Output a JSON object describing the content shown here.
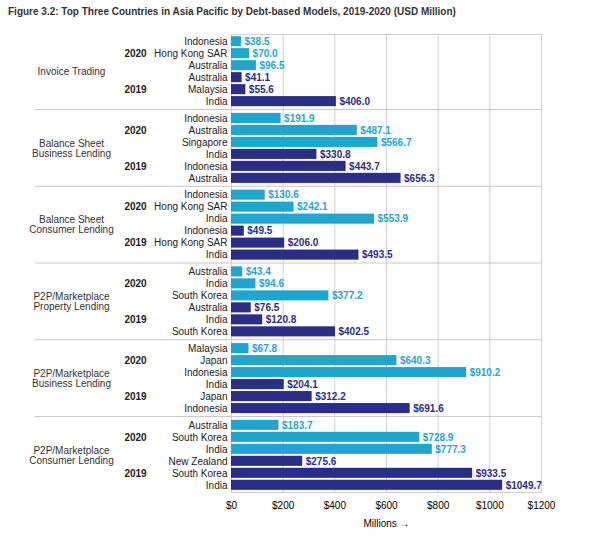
{
  "chart_data": {
    "type": "bar",
    "title": "Figure 3.2: Top Three Countries in Asia Pacific by Debt-based Models, 2019-2020 (USD Million)",
    "xlabel": "Millions",
    "orientation": "horizontal",
    "data_labels": true,
    "grid": true,
    "xlim": [
      0,
      1200
    ],
    "xticks": [
      {
        "value": 0,
        "label": "$0"
      },
      {
        "value": 200,
        "label": "$200"
      },
      {
        "value": 400,
        "label": "$400"
      },
      {
        "value": 600,
        "label": "$600"
      },
      {
        "value": 800,
        "label": "$800"
      },
      {
        "value": 1000,
        "label": "$1000"
      },
      {
        "value": 1200,
        "label": "$1200"
      }
    ],
    "panels": [
      {
        "label": "P2P/Marketplace Consumer Lending",
        "series": [
          {
            "name": "2019",
            "color": "#2b2e86",
            "categories": [
              "India",
              "South Korea",
              "New Zealand"
            ],
            "values": [
              1049.7,
              933.5,
              275.6
            ],
            "value_labels": [
              "$1049.7",
              "$933.5",
              "$275.6"
            ]
          },
          {
            "name": "2020",
            "color": "#1fa6cf",
            "categories": [
              "India",
              "South Korea",
              "Australia"
            ],
            "values": [
              777.3,
              728.9,
              183.7
            ],
            "value_labels": [
              "$777.3",
              "$728.9",
              "$183.7"
            ]
          }
        ]
      },
      {
        "label": "P2P/Marketplace Business Lending",
        "series": [
          {
            "name": "2019",
            "color": "#2b2e86",
            "categories": [
              "Indonesia",
              "Japan",
              "India"
            ],
            "values": [
              691.6,
              312.2,
              204.1
            ],
            "value_labels": [
              "$691.6",
              "$312.2",
              "$204.1"
            ]
          },
          {
            "name": "2020",
            "color": "#1fa6cf",
            "categories": [
              "Indonesia",
              "Japan",
              "Malaysia"
            ],
            "values": [
              910.2,
              640.3,
              67.8
            ],
            "value_labels": [
              "$910.2",
              "$640.3",
              "$67.8"
            ]
          }
        ]
      },
      {
        "label": "P2P/Marketplace Property Lending",
        "series": [
          {
            "name": "2019",
            "color": "#2b2e86",
            "categories": [
              "South Korea",
              "India",
              "Australia"
            ],
            "values": [
              402.5,
              120.8,
              76.5
            ],
            "value_labels": [
              "$402.5",
              "$120.8",
              "$76.5"
            ]
          },
          {
            "name": "2020",
            "color": "#1fa6cf",
            "categories": [
              "South Korea",
              "India",
              "Australia"
            ],
            "values": [
              377.2,
              94.6,
              43.4
            ],
            "value_labels": [
              "$377.2",
              "$94.6",
              "$43.4"
            ]
          }
        ]
      },
      {
        "label": "Balance Sheet Consumer Lending",
        "series": [
          {
            "name": "2019",
            "color": "#2b2e86",
            "categories": [
              "India",
              "Hong Kong SAR",
              "Indonesia"
            ],
            "values": [
              493.5,
              206.0,
              49.5
            ],
            "value_labels": [
              "$493.5",
              "$206.0",
              "$49.5"
            ]
          },
          {
            "name": "2020",
            "color": "#1fa6cf",
            "categories": [
              "India",
              "Hong Kong SAR",
              "Indonesia"
            ],
            "values": [
              553.9,
              242.1,
              130.6
            ],
            "value_labels": [
              "$553.9",
              "$242.1",
              "$130.6"
            ]
          }
        ]
      },
      {
        "label": "Balance Sheet Business Lending",
        "series": [
          {
            "name": "2019",
            "color": "#2b2e86",
            "categories": [
              "Australia",
              "Indonesia",
              "India"
            ],
            "values": [
              656.3,
              443.7,
              330.8
            ],
            "value_labels": [
              "$656.3",
              "$443.7",
              "$330.8"
            ]
          },
          {
            "name": "2020",
            "color": "#1fa6cf",
            "categories": [
              "Singapore",
              "Australia",
              "Indonesia"
            ],
            "values": [
              566.7,
              487.1,
              191.9
            ],
            "value_labels": [
              "$566.7",
              "$487.1",
              "$191.9"
            ]
          }
        ]
      },
      {
        "label": "Invoice Trading",
        "series": [
          {
            "name": "2019",
            "color": "#2b2e86",
            "categories": [
              "India",
              "Malaysia",
              "Australia"
            ],
            "values": [
              406.0,
              55.6,
              41.1
            ],
            "value_labels": [
              "$406.0",
              "$55.6",
              "$41.1"
            ]
          },
          {
            "name": "2020",
            "color": "#1fa6cf",
            "categories": [
              "Australia",
              "Hong Kong SAR",
              "Indonesia"
            ],
            "values": [
              96.5,
              70.0,
              38.5
            ],
            "value_labels": [
              "$96.5",
              "$70.0",
              "$38.5"
            ]
          }
        ]
      }
    ]
  }
}
